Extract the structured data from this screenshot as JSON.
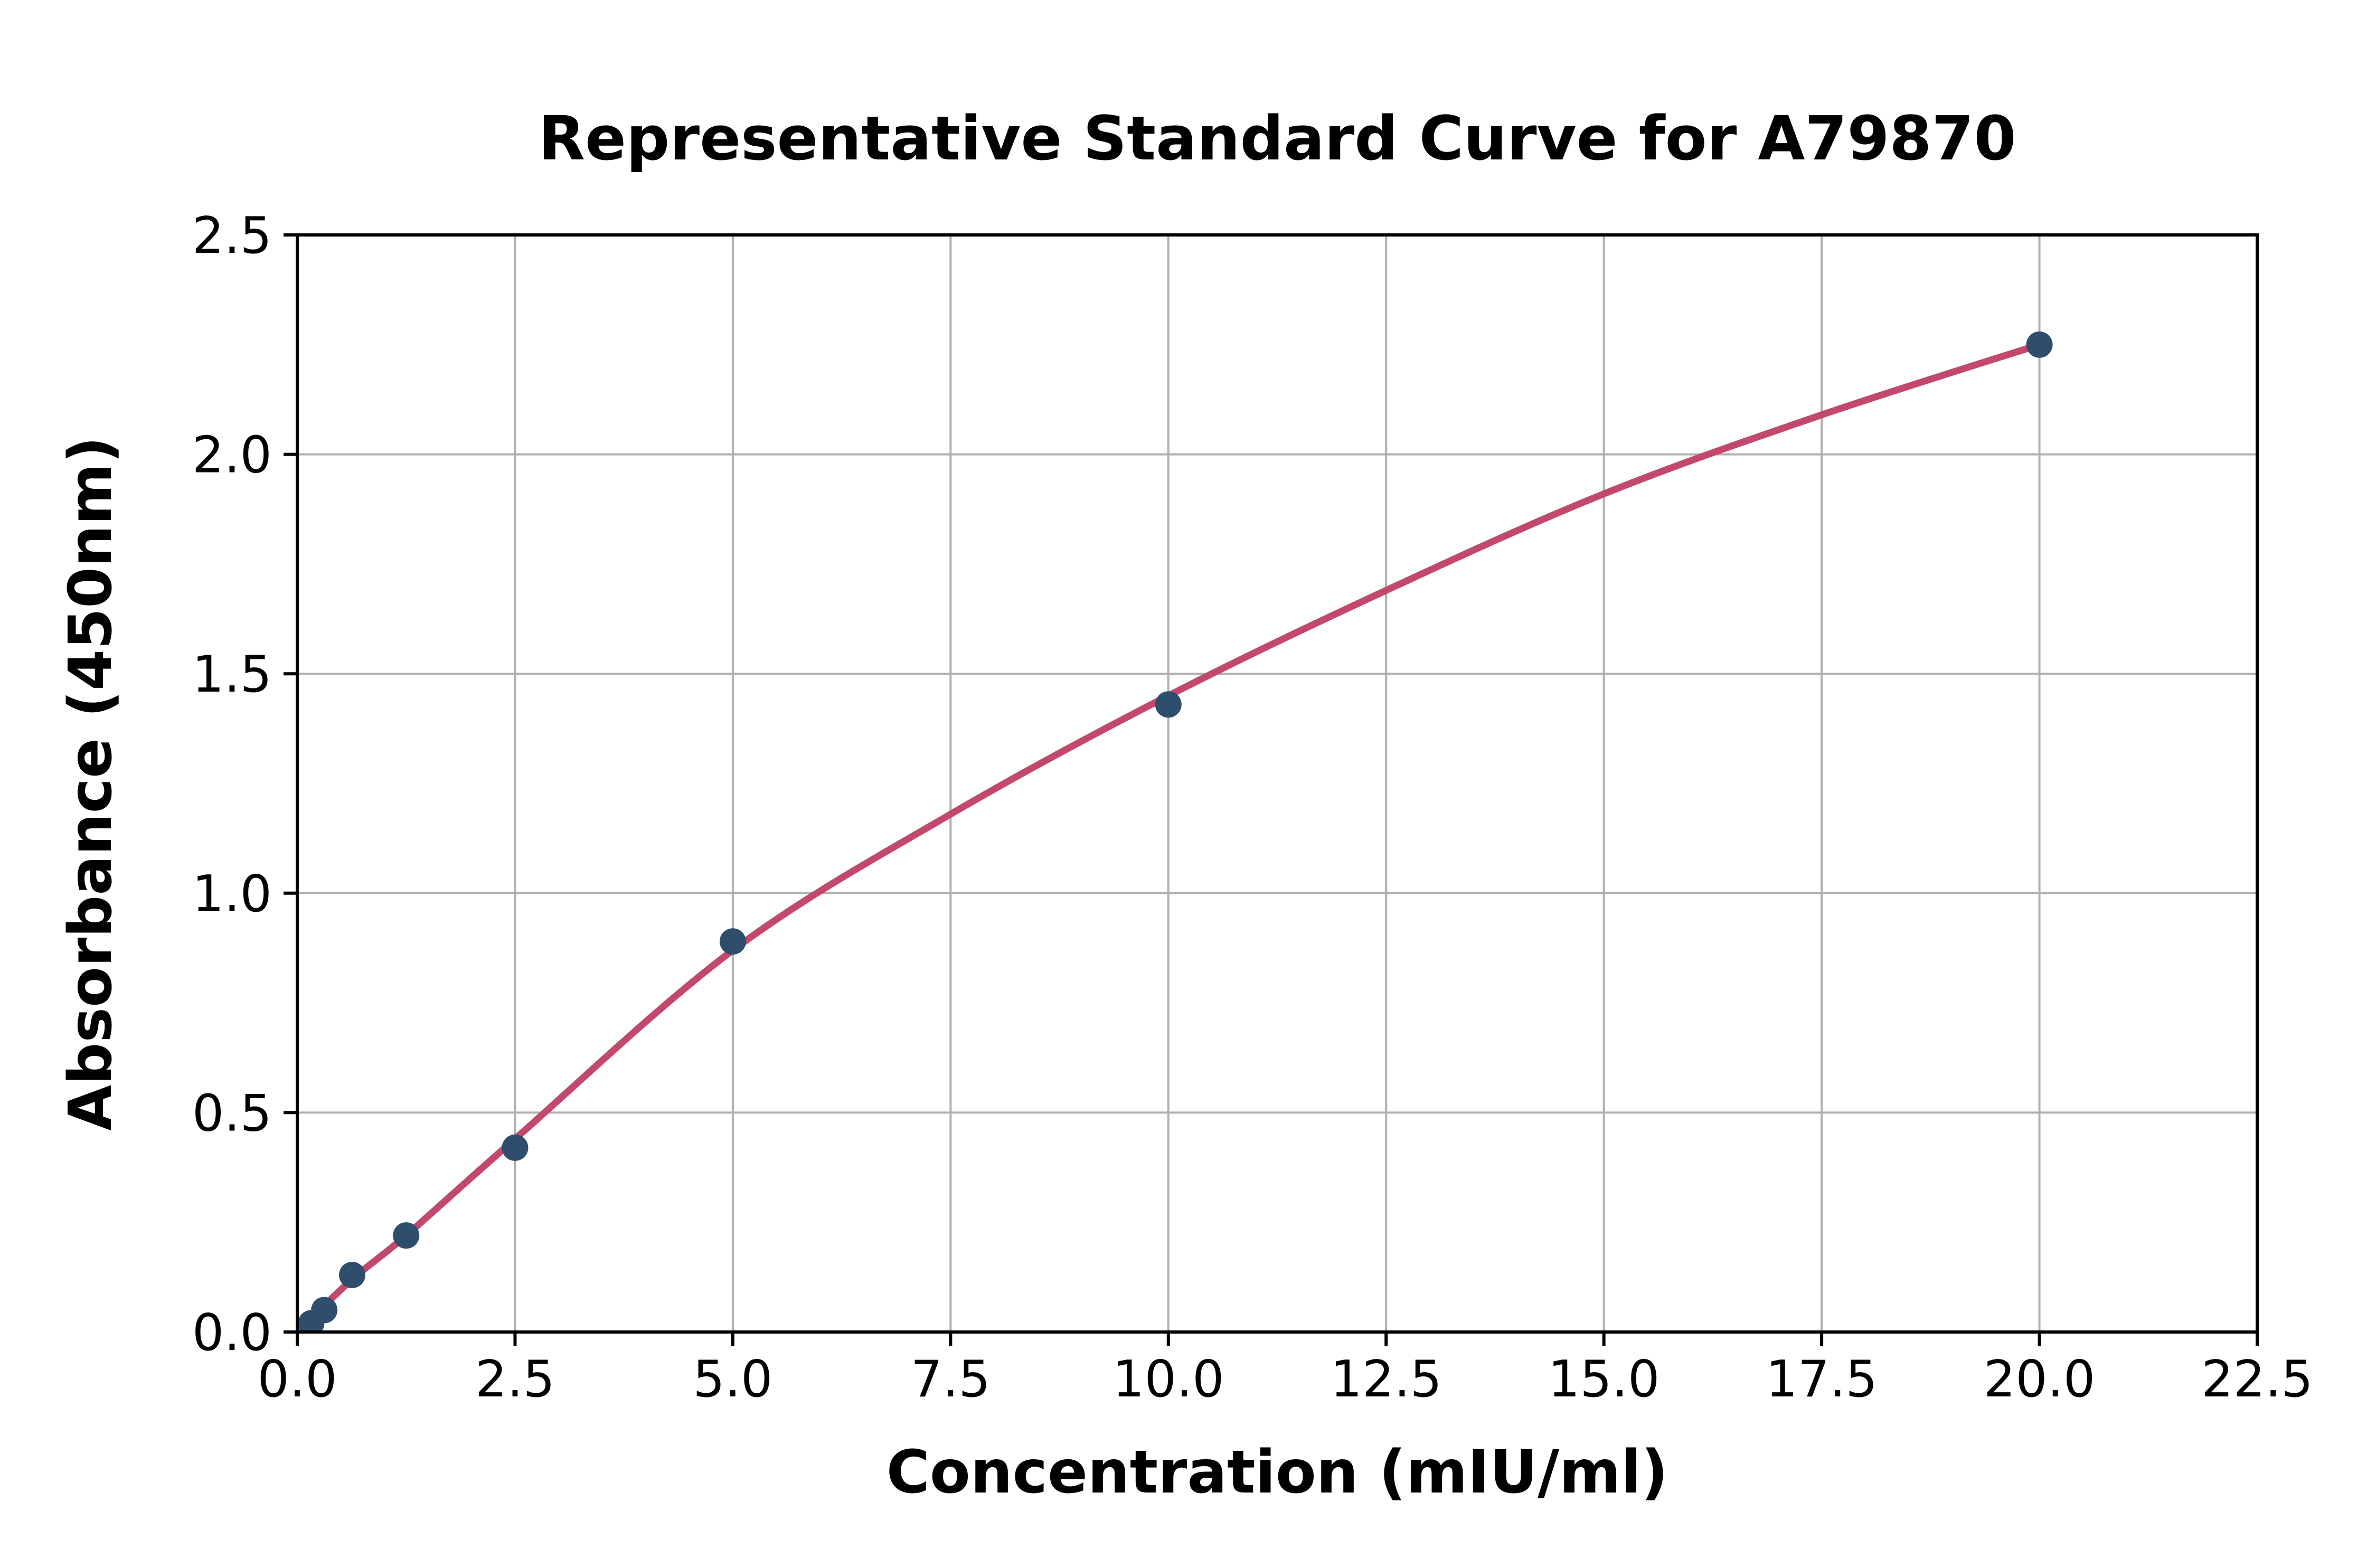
{
  "chart_data": {
    "type": "scatter",
    "title": "Representative Standard Curve for A79870",
    "xlabel": "Concentration (mIU/ml)",
    "ylabel": "Absorbance (450nm)",
    "xlim": [
      0,
      22.5
    ],
    "ylim": [
      0,
      2.5
    ],
    "x_ticks": [
      0.0,
      2.5,
      5.0,
      7.5,
      10.0,
      12.5,
      15.0,
      17.5,
      20.0,
      22.5
    ],
    "y_ticks": [
      0.0,
      0.5,
      1.0,
      1.5,
      2.0,
      2.5
    ],
    "tick_label_decimals": 1,
    "grid": true,
    "legend_position": "none",
    "series": [
      {
        "name": "standard-points",
        "kind": "scatter",
        "points": [
          [
            0.16,
            0.02
          ],
          [
            0.31,
            0.05
          ],
          [
            0.63,
            0.13
          ],
          [
            1.25,
            0.22
          ],
          [
            2.5,
            0.42
          ],
          [
            5.0,
            0.89
          ],
          [
            10.0,
            1.43
          ],
          [
            20.0,
            2.25
          ]
        ]
      },
      {
        "name": "fitted-curve",
        "kind": "line",
        "points": [
          [
            0.0,
            0.0
          ],
          [
            0.63,
            0.12
          ],
          [
            1.25,
            0.22
          ],
          [
            2.5,
            0.44
          ],
          [
            5.0,
            0.87
          ],
          [
            7.5,
            1.18
          ],
          [
            10.0,
            1.45
          ],
          [
            12.5,
            1.69
          ],
          [
            15.0,
            1.91
          ],
          [
            17.5,
            2.09
          ],
          [
            20.0,
            2.25
          ]
        ]
      }
    ],
    "colors": {
      "curve": "#c3496c",
      "marker": "#2f4d6d",
      "grid": "#b0b0b0",
      "axis": "#000000",
      "text": "#000000",
      "background": "#ffffff"
    }
  }
}
